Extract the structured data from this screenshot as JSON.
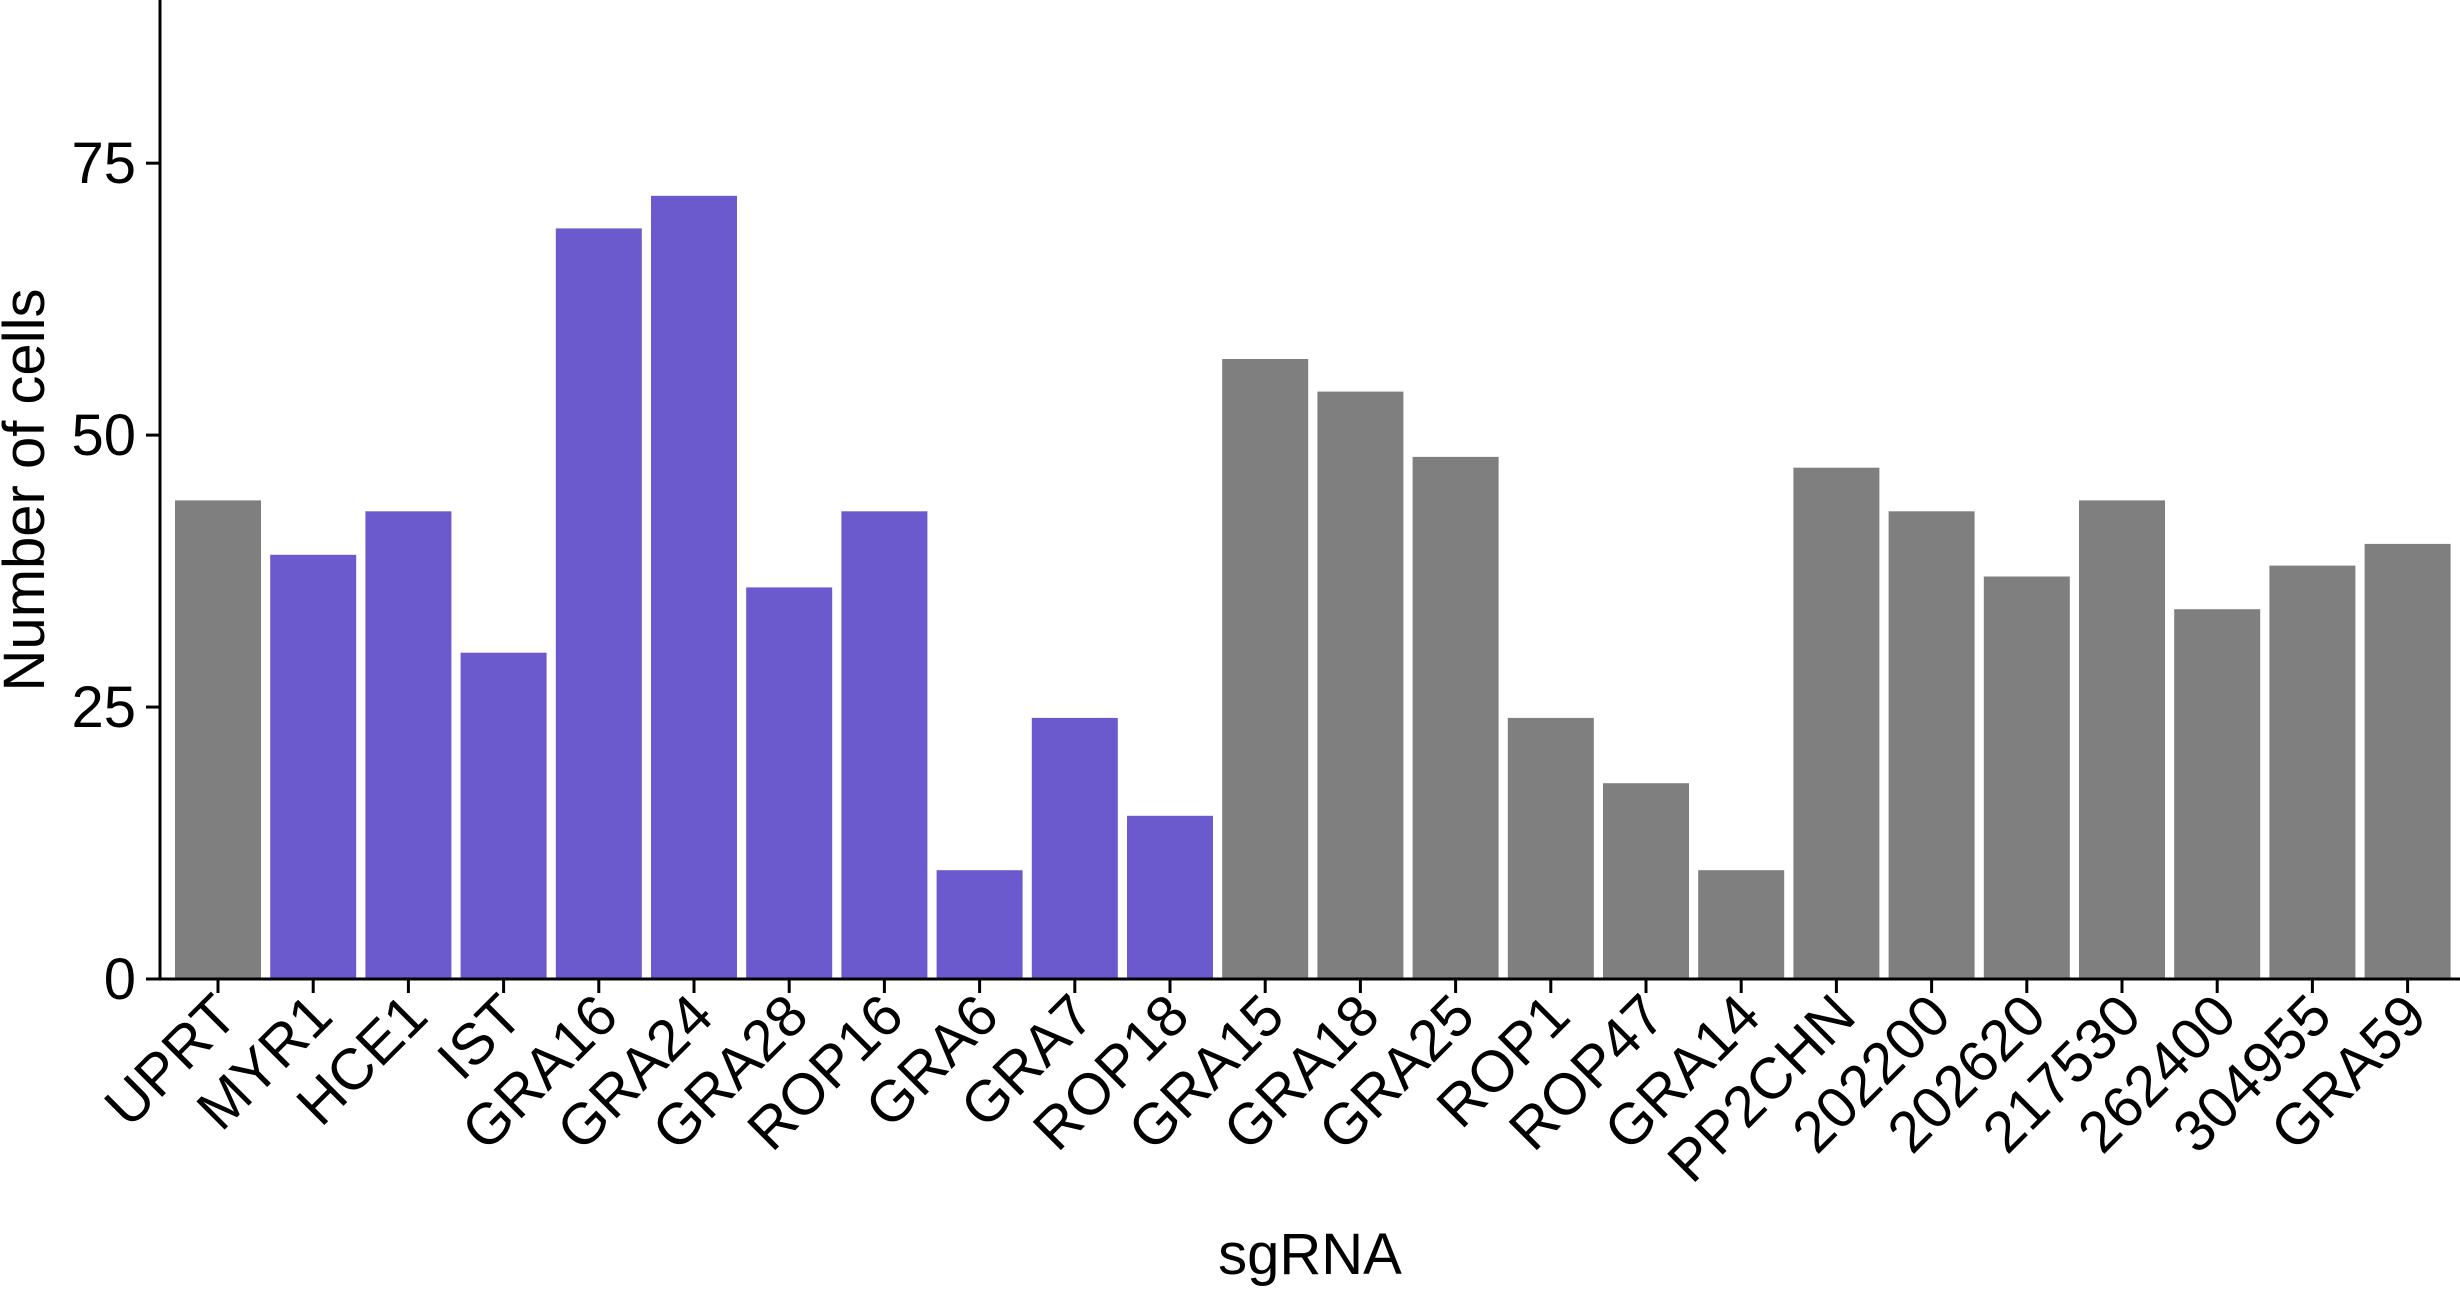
{
  "chart_data": {
    "type": "bar",
    "title": "",
    "xlabel": "sgRNA",
    "ylabel": "Number of cells",
    "ylim": [
      0,
      90
    ],
    "yticks": [
      0,
      25,
      50,
      75
    ],
    "grid": false,
    "legend": "none",
    "colors": {
      "highlight": "#6A5ACD",
      "default": "#7F7F7F",
      "axis": "#000000"
    },
    "categories": [
      "UPRT",
      "MYR1",
      "HCE1",
      "IST",
      "GRA16",
      "GRA24",
      "GRA28",
      "ROP16",
      "GRA6",
      "GRA7",
      "ROP18",
      "GRA15",
      "GRA18",
      "GRA25",
      "ROP1",
      "ROP47",
      "GRA14",
      "PP2CHN",
      "202200",
      "202620",
      "217530",
      "262400",
      "304955",
      "GRA59"
    ],
    "values": [
      44,
      39,
      43,
      30,
      69,
      72,
      36,
      43,
      10,
      24,
      15,
      57,
      54,
      48,
      24,
      18,
      10,
      47,
      43,
      37,
      44,
      34,
      38,
      40
    ],
    "bar_color_groups": [
      "default",
      "highlight",
      "highlight",
      "highlight",
      "highlight",
      "highlight",
      "highlight",
      "highlight",
      "highlight",
      "highlight",
      "highlight",
      "default",
      "default",
      "default",
      "default",
      "default",
      "default",
      "default",
      "default",
      "default",
      "default",
      "default",
      "default",
      "default"
    ]
  }
}
